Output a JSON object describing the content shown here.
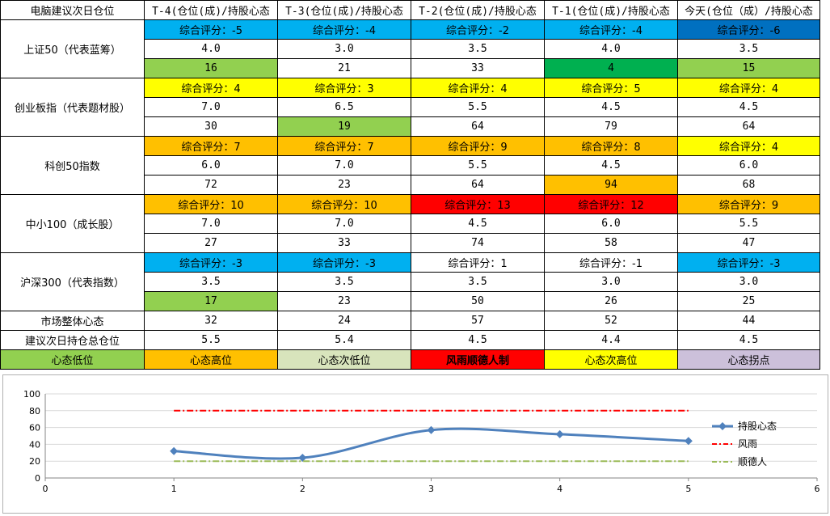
{
  "colors": {
    "blue": "#00b0f0",
    "dark_blue": "#0070c0",
    "yellow": "#ffff00",
    "orange": "#ffc000",
    "red": "#ff0000",
    "light_green": "#92d050",
    "green": "#00b050",
    "pale_green": "#d8e4bc",
    "lavender": "#ccc0da",
    "white": "#ffffff"
  },
  "table": {
    "corner": "电脑建议次日仓位",
    "headers": [
      "T-4(仓位(成)/持股心态",
      "T-3(仓位(成)/持股心态",
      "T-2(仓位(成)/持股心态",
      "T-1(仓位(成)/持股心态",
      "今天(仓位（成）/持股心态"
    ],
    "indices": [
      {
        "name": "上证50（代表蓝筹）",
        "scores": [
          "综合评分：-5",
          "综合评分：-4",
          "综合评分：-2",
          "综合评分：-4",
          "综合评分：-6"
        ],
        "score_colors": [
          "blue",
          "blue",
          "blue",
          "blue",
          "dark_blue"
        ],
        "positions": [
          "4.0",
          "3.0",
          "3.5",
          "4.0",
          "3.5"
        ],
        "moods": [
          "16",
          "21",
          "33",
          "4",
          "15"
        ],
        "mood_colors": [
          "light_green",
          "white",
          "white",
          "green",
          "light_green"
        ]
      },
      {
        "name": "创业板指（代表题材股）",
        "scores": [
          "综合评分：4",
          "综合评分：3",
          "综合评分：4",
          "综合评分：5",
          "综合评分：4"
        ],
        "score_colors": [
          "yellow",
          "yellow",
          "yellow",
          "yellow",
          "yellow"
        ],
        "positions": [
          "7.0",
          "6.5",
          "5.5",
          "4.5",
          "4.5"
        ],
        "moods": [
          "30",
          "19",
          "64",
          "79",
          "64"
        ],
        "mood_colors": [
          "white",
          "light_green",
          "white",
          "white",
          "white"
        ]
      },
      {
        "name": "科创50指数",
        "scores": [
          "综合评分：7",
          "综合评分：7",
          "综合评分：9",
          "综合评分：8",
          "综合评分：4"
        ],
        "score_colors": [
          "orange",
          "orange",
          "orange",
          "orange",
          "yellow"
        ],
        "positions": [
          "6.0",
          "7.0",
          "5.5",
          "4.5",
          "6.0"
        ],
        "moods": [
          "72",
          "23",
          "64",
          "94",
          "68"
        ],
        "mood_colors": [
          "white",
          "white",
          "white",
          "orange",
          "white"
        ]
      },
      {
        "name": "中小100（成长股）",
        "scores": [
          "综合评分：10",
          "综合评分：10",
          "综合评分：13",
          "综合评分：12",
          "综合评分：9"
        ],
        "score_colors": [
          "orange",
          "orange",
          "red",
          "red",
          "orange"
        ],
        "positions": [
          "7.0",
          "7.0",
          "4.5",
          "6.0",
          "5.5"
        ],
        "moods": [
          "27",
          "33",
          "74",
          "58",
          "47"
        ],
        "mood_colors": [
          "white",
          "white",
          "white",
          "white",
          "white"
        ]
      },
      {
        "name": "沪深300（代表指数）",
        "scores": [
          "综合评分：-3",
          "综合评分：-3",
          "综合评分：1",
          "综合评分：-1",
          "综合评分：-3"
        ],
        "score_colors": [
          "blue",
          "blue",
          "white",
          "white",
          "blue"
        ],
        "positions": [
          "3.5",
          "3.5",
          "3.5",
          "3.0",
          "3.0"
        ],
        "moods": [
          "17",
          "23",
          "50",
          "26",
          "25"
        ],
        "mood_colors": [
          "light_green",
          "white",
          "white",
          "white",
          "white"
        ]
      }
    ],
    "summary": [
      {
        "label": "市场整体心态",
        "values": [
          "32",
          "24",
          "57",
          "52",
          "44"
        ]
      },
      {
        "label": "建议次日持仓总仓位",
        "values": [
          "5.5",
          "5.4",
          "4.5",
          "4.4",
          "4.5"
        ]
      }
    ],
    "legend": [
      {
        "label": "心态低位",
        "color": "light_green",
        "bold": false
      },
      {
        "label": "心态高位",
        "color": "orange",
        "bold": false
      },
      {
        "label": "心态次低位",
        "color": "pale_green",
        "bold": false
      },
      {
        "label": "风雨顺德人制",
        "color": "red",
        "bold": true
      },
      {
        "label": "心态次高位",
        "color": "yellow",
        "bold": false
      },
      {
        "label": "心态拐点",
        "color": "lavender",
        "bold": false
      }
    ]
  },
  "chart_data": {
    "type": "line",
    "title": "",
    "xlabel": "",
    "ylabel": "",
    "xlim": [
      0,
      6
    ],
    "ylim": [
      0,
      100
    ],
    "x_ticks": [
      "0",
      "1",
      "2",
      "3",
      "4",
      "5",
      "6"
    ],
    "y_ticks": [
      "0",
      "20",
      "40",
      "60",
      "80",
      "100"
    ],
    "grid": "horizontal",
    "legend_position": "right",
    "series": [
      {
        "name": "持股心态",
        "x": [
          1,
          2,
          3,
          4,
          5
        ],
        "y": [
          32,
          24,
          57,
          52,
          44
        ],
        "color": "#4f81bd",
        "style": "smooth-line-diamond"
      },
      {
        "name": "风雨",
        "x": [
          1,
          5
        ],
        "y": [
          80,
          80
        ],
        "color": "#ff0000",
        "style": "dash-dot"
      },
      {
        "name": "顺德人",
        "x": [
          1,
          5
        ],
        "y": [
          20,
          20
        ],
        "color": "#9bbb59",
        "style": "dash-dot"
      }
    ]
  }
}
